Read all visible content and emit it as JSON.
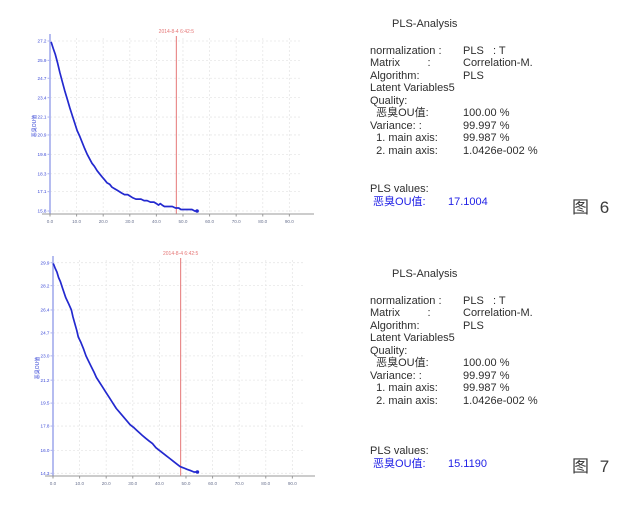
{
  "chart_data": [
    {
      "type": "line",
      "title": "",
      "xlabel": "",
      "ylabel": "恶臭OU值",
      "series_color": "#2329cf",
      "marker_color": "#e57676",
      "marker_label": "2014-8-4 6:42:5",
      "marker_x": 47.5,
      "xlim": [
        0,
        94
      ],
      "ylim": [
        15.6,
        27.4
      ],
      "grid": true,
      "x_tick_values": [
        0,
        10,
        20,
        30,
        40,
        50,
        60,
        70,
        80,
        90
      ],
      "x_tick_labels": [
        "0.0",
        "10.0",
        "20.0",
        "30.0",
        "40.0",
        "50.0",
        "60.0",
        "70.0",
        "80.0",
        "90.0"
      ],
      "y_tick_values": [
        27.2,
        25.9,
        24.7,
        23.4,
        22.1,
        20.9,
        19.6,
        18.3,
        17.1,
        15.8
      ],
      "y_tick_labels": [
        "27.2",
        "25.9",
        "24.7",
        "23.4",
        "22.1",
        "20.9",
        "19.6",
        "18.3",
        "17.1",
        "15.8"
      ],
      "points": [
        [
          0.5,
          27.1
        ],
        [
          1.2,
          26.7
        ],
        [
          2,
          26.3
        ],
        [
          2.9,
          25.7
        ],
        [
          3.7,
          25.1
        ],
        [
          4.6,
          24.5
        ],
        [
          5.5,
          23.9
        ],
        [
          6.5,
          23.3
        ],
        [
          7.5,
          22.7
        ],
        [
          8.4,
          22.2
        ],
        [
          9.3,
          21.7
        ],
        [
          10.2,
          21.2
        ],
        [
          11.2,
          20.8
        ],
        [
          12.1,
          20.4
        ],
        [
          13,
          20
        ],
        [
          14,
          19.6
        ],
        [
          14.9,
          19.3
        ],
        [
          15.8,
          19
        ],
        [
          16.7,
          18.8
        ],
        [
          17.7,
          18.5
        ],
        [
          18.6,
          18.3
        ],
        [
          19.5,
          18.1
        ],
        [
          20.5,
          17.9
        ],
        [
          21.4,
          17.7
        ],
        [
          22.4,
          17.6
        ],
        [
          23.3,
          17.4
        ],
        [
          24.2,
          17.3
        ],
        [
          25.2,
          17.2
        ],
        [
          26.1,
          17.1
        ],
        [
          27,
          17
        ],
        [
          28,
          16.9
        ],
        [
          29.2,
          16.9
        ],
        [
          30.1,
          16.8
        ],
        [
          31,
          16.7
        ],
        [
          32.3,
          16.6
        ],
        [
          34.2,
          16.6
        ],
        [
          35.4,
          16.5
        ],
        [
          36.5,
          16.5
        ],
        [
          37.8,
          16.4
        ],
        [
          39.1,
          16.4
        ],
        [
          40,
          16.3
        ],
        [
          40.8,
          16.2
        ],
        [
          41.5,
          16.3
        ],
        [
          42.2,
          16.2
        ],
        [
          43,
          16.1
        ],
        [
          44.1,
          16.1
        ],
        [
          45,
          16.1
        ],
        [
          46,
          16.1
        ],
        [
          47.2,
          16
        ],
        [
          48.4,
          16
        ],
        [
          49.2,
          15.9
        ],
        [
          50,
          15.9
        ],
        [
          51.1,
          15.9
        ],
        [
          52.2,
          15.9
        ],
        [
          53.4,
          15.9
        ],
        [
          54.4,
          15.8
        ],
        [
          55.3,
          15.8
        ]
      ]
    },
    {
      "type": "line",
      "title": "",
      "xlabel": "",
      "ylabel": "恶臭OU值",
      "series_color": "#2329cf",
      "marker_color": "#e57676",
      "marker_label": "2014-8-4 6:42:5",
      "marker_x": 48,
      "xlim": [
        0,
        94
      ],
      "ylim": [
        14.1,
        30.1
      ],
      "grid": true,
      "x_tick_values": [
        0,
        10,
        20,
        30,
        40,
        50,
        60,
        70,
        80,
        90
      ],
      "x_tick_labels": [
        "0.0",
        "10.0",
        "20.0",
        "30.0",
        "40.0",
        "50.0",
        "60.0",
        "70.0",
        "80.0",
        "90.0"
      ],
      "y_tick_values": [
        29.9,
        28.2,
        26.4,
        24.7,
        23,
        21.2,
        19.5,
        17.8,
        16,
        14.3
      ],
      "y_tick_labels": [
        "29.9",
        "28.2",
        "26.4",
        "24.7",
        "23.0",
        "21.2",
        "19.5",
        "17.8",
        "16.0",
        "14.3"
      ],
      "points": [
        [
          0.2,
          29.8
        ],
        [
          0.8,
          29.5
        ],
        [
          1.5,
          29.2
        ],
        [
          2.1,
          28.8
        ],
        [
          2.8,
          28.5
        ],
        [
          3.6,
          28
        ],
        [
          4.8,
          27.3
        ],
        [
          5.8,
          26.9
        ],
        [
          6.9,
          26.4
        ],
        [
          7.5,
          25.9
        ],
        [
          8.2,
          25.4
        ],
        [
          8.9,
          24.9
        ],
        [
          9.5,
          24.4
        ],
        [
          10.5,
          24
        ],
        [
          11.5,
          23.5
        ],
        [
          12.4,
          23
        ],
        [
          13.4,
          22.6
        ],
        [
          14.4,
          22.2
        ],
        [
          15.4,
          21.8
        ],
        [
          16.3,
          21.4
        ],
        [
          17.3,
          21.1
        ],
        [
          18.6,
          20.7
        ],
        [
          19.9,
          20.3
        ],
        [
          21.2,
          19.9
        ],
        [
          22.5,
          19.5
        ],
        [
          23.8,
          19.1
        ],
        [
          25.1,
          18.8
        ],
        [
          26.4,
          18.5
        ],
        [
          27.7,
          18.2
        ],
        [
          29,
          17.9
        ],
        [
          30.3,
          17.7
        ],
        [
          31.4,
          17.5
        ],
        [
          32.5,
          17.3
        ],
        [
          33.6,
          17.1
        ],
        [
          34.8,
          16.9
        ],
        [
          36.1,
          16.7
        ],
        [
          37.4,
          16.5
        ],
        [
          38.7,
          16.2
        ],
        [
          40,
          16
        ],
        [
          41.3,
          15.8
        ],
        [
          42.6,
          15.6
        ],
        [
          43.9,
          15.4
        ],
        [
          45.2,
          15.2
        ],
        [
          46.5,
          15
        ],
        [
          47.8,
          14.8
        ],
        [
          49.1,
          14.7
        ],
        [
          50.4,
          14.6
        ],
        [
          51.7,
          14.5
        ],
        [
          53,
          14.4
        ],
        [
          54.3,
          14.4
        ]
      ]
    }
  ],
  "panels": [
    {
      "title": "PLS-Analysis",
      "rows": [
        {
          "label": "normalization : ",
          "value": "PLS   : T"
        },
        {
          "label": "Matrix         :  ",
          "value": "Correlation-M."
        },
        {
          "label": "Algorithm:",
          "value": "PLS"
        },
        {
          "label": "Latent Variables5",
          "value": ""
        },
        {
          "label": "Quality:",
          "value": ""
        },
        {
          "label": "  恶臭OU值: ",
          "value": "100.00 %"
        },
        {
          "label": "Variance: : ",
          "value": "99.997 %"
        },
        {
          "label": "  1. main axis: ",
          "value": "99.987 %"
        },
        {
          "label": "  2. main axis: ",
          "value": "1.0426e-002 %"
        }
      ],
      "footer_label": "PLS  values:",
      "result_label": " 恶臭OU值:  ",
      "result_value": "17.1004",
      "figure_caption": "图 6"
    },
    {
      "title": "PLS-Analysis",
      "rows": [
        {
          "label": "normalization : ",
          "value": "PLS   : T"
        },
        {
          "label": "Matrix         :  ",
          "value": "Correlation-M."
        },
        {
          "label": "Algorithm:",
          "value": "PLS"
        },
        {
          "label": "Latent Variables5",
          "value": ""
        },
        {
          "label": "Quality:",
          "value": ""
        },
        {
          "label": "  恶臭OU值: ",
          "value": "100.00 %"
        },
        {
          "label": "Variance: : ",
          "value": "99.997 %"
        },
        {
          "label": "  1. main axis: ",
          "value": "99.987 %"
        },
        {
          "label": "  2. main axis: ",
          "value": "1.0426e-002 %"
        }
      ],
      "footer_label": "PLS  values:",
      "result_label": " 恶臭OU值:  ",
      "result_value": "15.1190",
      "figure_caption": "图 7"
    }
  ]
}
